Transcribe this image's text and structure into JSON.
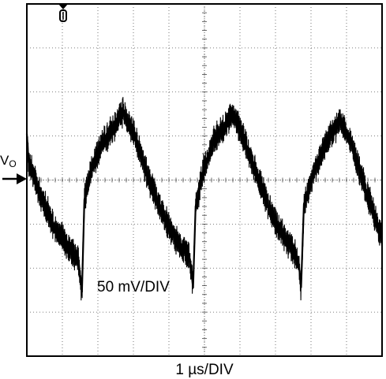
{
  "chart_data": {
    "type": "line",
    "title": "",
    "trace_label": "V",
    "trace_label_sub": "O",
    "vertical_scale_label": "50 mV/DIV",
    "time_scale_label": "1 µs/DIV",
    "x_divisions": 10,
    "y_divisions": 8,
    "xlim": [
      0,
      10
    ],
    "ylim": [
      -4,
      4
    ],
    "grid": "dotted",
    "trigger_marker": "top-left",
    "ground_marker": "left",
    "series": [
      {
        "points": [
          [
            0.0,
            1.05
          ],
          [
            0.05,
            0.4
          ],
          [
            0.15,
            0.25
          ],
          [
            0.4,
            -0.4
          ],
          [
            0.8,
            -1.1
          ],
          [
            1.2,
            -1.55
          ],
          [
            1.45,
            -1.8
          ],
          [
            1.55,
            -2.55
          ],
          [
            1.62,
            -0.45
          ],
          [
            1.8,
            0.2
          ],
          [
            2.1,
            0.8
          ],
          [
            2.5,
            1.25
          ],
          [
            2.7,
            1.55
          ],
          [
            3.0,
            1.1
          ],
          [
            3.4,
            0.1
          ],
          [
            3.8,
            -0.75
          ],
          [
            4.2,
            -1.35
          ],
          [
            4.5,
            -1.65
          ],
          [
            4.6,
            -1.85
          ],
          [
            4.68,
            -2.45
          ],
          [
            4.75,
            -0.6
          ],
          [
            5.0,
            0.3
          ],
          [
            5.3,
            0.95
          ],
          [
            5.6,
            1.25
          ],
          [
            5.8,
            1.5
          ],
          [
            6.1,
            0.95
          ],
          [
            6.5,
            0.05
          ],
          [
            6.9,
            -0.8
          ],
          [
            7.3,
            -1.35
          ],
          [
            7.55,
            -1.7
          ],
          [
            7.65,
            -1.85
          ],
          [
            7.72,
            -2.45
          ],
          [
            7.8,
            -0.55
          ],
          [
            8.1,
            0.2
          ],
          [
            8.4,
            0.8
          ],
          [
            8.7,
            1.2
          ],
          [
            8.8,
            1.4
          ],
          [
            9.1,
            0.9
          ],
          [
            9.4,
            0.15
          ],
          [
            9.7,
            -0.6
          ],
          [
            9.9,
            -1.1
          ],
          [
            10.0,
            -1.2
          ]
        ]
      }
    ]
  }
}
